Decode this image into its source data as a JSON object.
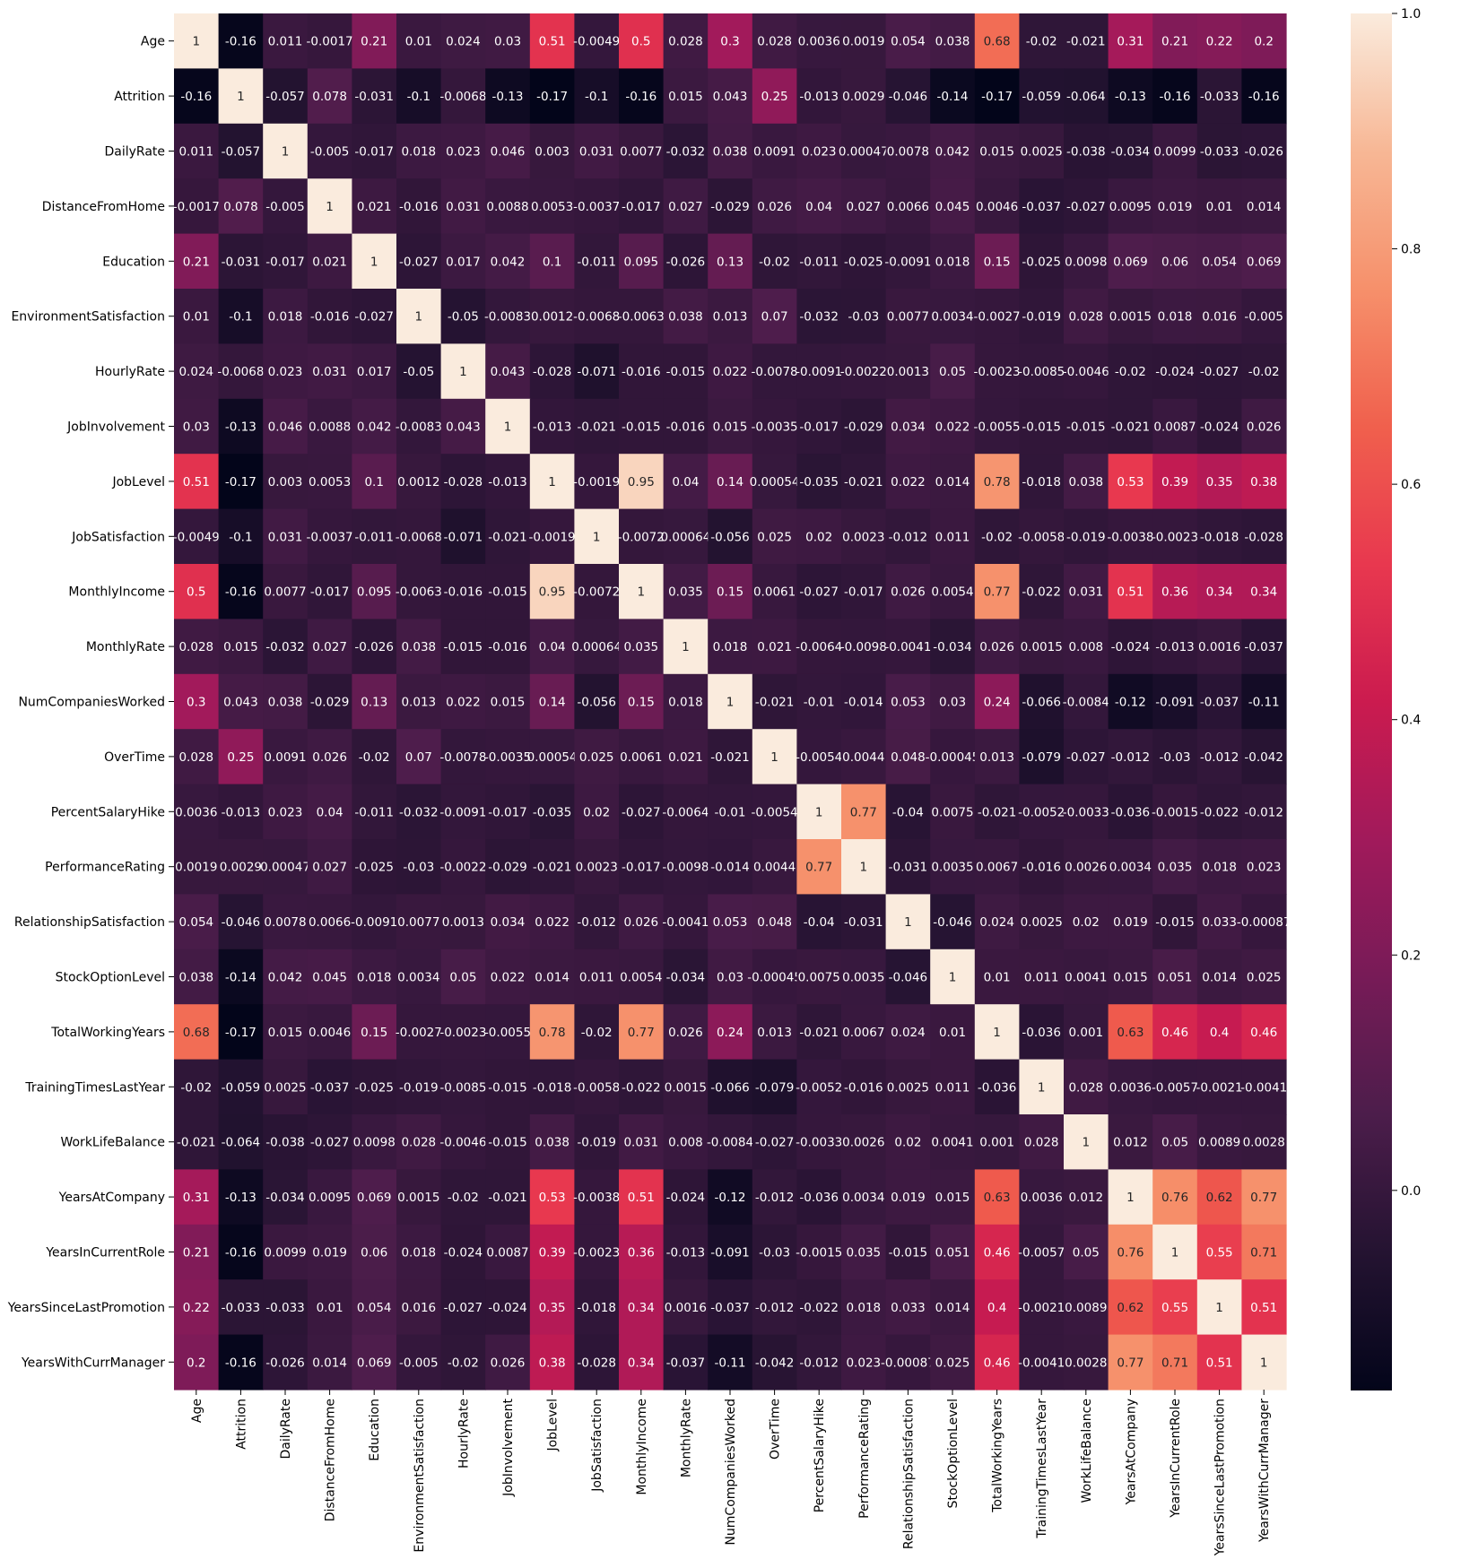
{
  "chart_data": {
    "type": "heatmap",
    "title": "",
    "xlabel": "",
    "ylabel": "",
    "variables": [
      "Age",
      "Attrition",
      "DailyRate",
      "DistanceFromHome",
      "Education",
      "EnvironmentSatisfaction",
      "HourlyRate",
      "JobInvolvement",
      "JobLevel",
      "JobSatisfaction",
      "MonthlyIncome",
      "MonthlyRate",
      "NumCompaniesWorked",
      "OverTime",
      "PercentSalaryHike",
      "PerformanceRating",
      "RelationshipSatisfaction",
      "StockOptionLevel",
      "TotalWorkingYears",
      "TrainingTimesLastYear",
      "WorkLifeBalance",
      "YearsAtCompany",
      "YearsInCurrentRole",
      "YearsSinceLastPromotion",
      "YearsWithCurrManager"
    ],
    "values": [
      [
        1,
        -0.16,
        0.011,
        -0.0017,
        0.21,
        0.01,
        0.024,
        0.03,
        0.51,
        -0.0049,
        0.5,
        0.028,
        0.3,
        0.028,
        0.0036,
        0.0019,
        0.054,
        0.038,
        0.68,
        -0.02,
        -0.021,
        0.31,
        0.21,
        0.22,
        0.2
      ],
      [
        -0.16,
        1,
        -0.057,
        0.078,
        -0.031,
        -0.1,
        -0.0068,
        -0.13,
        -0.17,
        -0.1,
        -0.16,
        0.015,
        0.043,
        0.25,
        -0.013,
        0.0029,
        -0.046,
        -0.14,
        -0.17,
        -0.059,
        -0.064,
        -0.13,
        -0.16,
        -0.033,
        -0.16
      ],
      [
        0.011,
        -0.057,
        1,
        -0.005,
        -0.017,
        0.018,
        0.023,
        0.046,
        0.003,
        0.031,
        0.0077,
        -0.032,
        0.038,
        0.0091,
        0.023,
        0.00047,
        0.0078,
        0.042,
        0.015,
        0.0025,
        -0.038,
        -0.034,
        0.0099,
        -0.033,
        -0.026
      ],
      [
        -0.0017,
        0.078,
        -0.005,
        1,
        0.021,
        -0.016,
        0.031,
        0.0088,
        0.0053,
        -0.0037,
        -0.017,
        0.027,
        -0.029,
        0.026,
        0.04,
        0.027,
        0.0066,
        0.045,
        0.0046,
        -0.037,
        -0.027,
        0.0095,
        0.019,
        0.01,
        0.014
      ],
      [
        0.21,
        -0.031,
        -0.017,
        0.021,
        1,
        -0.027,
        0.017,
        0.042,
        0.1,
        -0.011,
        0.095,
        -0.026,
        0.13,
        -0.02,
        -0.011,
        -0.025,
        -0.0091,
        0.018,
        0.15,
        -0.025,
        0.0098,
        0.069,
        0.06,
        0.054,
        0.069
      ],
      [
        0.01,
        -0.1,
        0.018,
        -0.016,
        -0.027,
        1,
        -0.05,
        -0.0083,
        0.0012,
        -0.0068,
        -0.0063,
        0.038,
        0.013,
        0.07,
        -0.032,
        -0.03,
        0.0077,
        0.0034,
        -0.0027,
        -0.019,
        0.028,
        0.0015,
        0.018,
        0.016,
        -0.005
      ],
      [
        0.024,
        -0.0068,
        0.023,
        0.031,
        0.017,
        -0.05,
        1,
        0.043,
        -0.028,
        -0.071,
        -0.016,
        -0.015,
        0.022,
        -0.0078,
        -0.0091,
        -0.0022,
        0.0013,
        0.05,
        -0.0023,
        -0.0085,
        -0.0046,
        -0.02,
        -0.024,
        -0.027,
        -0.02
      ],
      [
        0.03,
        -0.13,
        0.046,
        0.0088,
        0.042,
        -0.0083,
        0.043,
        1,
        -0.013,
        -0.021,
        -0.015,
        -0.016,
        0.015,
        -0.0035,
        -0.017,
        -0.029,
        0.034,
        0.022,
        -0.0055,
        -0.015,
        -0.015,
        -0.021,
        0.0087,
        -0.024,
        0.026
      ],
      [
        0.51,
        -0.17,
        0.003,
        0.0053,
        0.1,
        0.0012,
        -0.028,
        -0.013,
        1,
        -0.0019,
        0.95,
        0.04,
        0.14,
        0.00054,
        -0.035,
        -0.021,
        0.022,
        0.014,
        0.78,
        -0.018,
        0.038,
        0.53,
        0.39,
        0.35,
        0.38
      ],
      [
        -0.0049,
        -0.1,
        0.031,
        -0.0037,
        -0.011,
        -0.0068,
        -0.071,
        -0.021,
        -0.0019,
        1,
        -0.0072,
        0.00064,
        -0.056,
        0.025,
        0.02,
        0.0023,
        -0.012,
        0.011,
        -0.02,
        -0.0058,
        -0.019,
        -0.0038,
        -0.0023,
        -0.018,
        -0.028
      ],
      [
        0.5,
        -0.16,
        0.0077,
        -0.017,
        0.095,
        -0.0063,
        -0.016,
        -0.015,
        0.95,
        -0.0072,
        1,
        0.035,
        0.15,
        0.0061,
        -0.027,
        -0.017,
        0.026,
        0.0054,
        0.77,
        -0.022,
        0.031,
        0.51,
        0.36,
        0.34,
        0.34
      ],
      [
        0.028,
        0.015,
        -0.032,
        0.027,
        -0.026,
        0.038,
        -0.015,
        -0.016,
        0.04,
        0.00064,
        0.035,
        1,
        0.018,
        0.021,
        -0.0064,
        -0.0098,
        -0.0041,
        -0.034,
        0.026,
        0.0015,
        0.008,
        -0.024,
        -0.013,
        0.0016,
        -0.037
      ],
      [
        0.3,
        0.043,
        0.038,
        -0.029,
        0.13,
        0.013,
        0.022,
        0.015,
        0.14,
        -0.056,
        0.15,
        0.018,
        1,
        -0.021,
        -0.01,
        -0.014,
        0.053,
        0.03,
        0.24,
        -0.066,
        -0.0084,
        -0.12,
        -0.091,
        -0.037,
        -0.11
      ],
      [
        0.028,
        0.25,
        0.0091,
        0.026,
        -0.02,
        0.07,
        -0.0078,
        -0.0035,
        0.00054,
        0.025,
        0.0061,
        0.021,
        -0.021,
        1,
        -0.0054,
        0.0044,
        0.048,
        -0.00045,
        0.013,
        -0.079,
        -0.027,
        -0.012,
        -0.03,
        -0.012,
        -0.042
      ],
      [
        0.0036,
        -0.013,
        0.023,
        0.04,
        -0.011,
        -0.032,
        -0.0091,
        -0.017,
        -0.035,
        0.02,
        -0.027,
        -0.0064,
        -0.01,
        -0.0054,
        1,
        0.77,
        -0.04,
        0.0075,
        -0.021,
        -0.0052,
        -0.0033,
        -0.036,
        -0.0015,
        -0.022,
        -0.012
      ],
      [
        0.0019,
        0.0029,
        0.00047,
        0.027,
        -0.025,
        -0.03,
        -0.0022,
        -0.029,
        -0.021,
        0.0023,
        -0.017,
        -0.0098,
        -0.014,
        0.0044,
        0.77,
        1,
        -0.031,
        0.0035,
        0.0067,
        -0.016,
        0.0026,
        0.0034,
        0.035,
        0.018,
        0.023
      ],
      [
        0.054,
        -0.046,
        0.0078,
        0.0066,
        -0.0091,
        0.0077,
        0.0013,
        0.034,
        0.022,
        -0.012,
        0.026,
        -0.0041,
        0.053,
        0.048,
        -0.04,
        -0.031,
        1,
        -0.046,
        0.024,
        0.0025,
        0.02,
        0.019,
        -0.015,
        0.033,
        -0.00087
      ],
      [
        0.038,
        -0.14,
        0.042,
        0.045,
        0.018,
        0.0034,
        0.05,
        0.022,
        0.014,
        0.011,
        0.0054,
        -0.034,
        0.03,
        -0.00045,
        0.0075,
        0.0035,
        -0.046,
        1,
        0.01,
        0.011,
        0.0041,
        0.015,
        0.051,
        0.014,
        0.025
      ],
      [
        0.68,
        -0.17,
        0.015,
        0.0046,
        0.15,
        -0.0027,
        -0.0023,
        -0.0055,
        0.78,
        -0.02,
        0.77,
        0.026,
        0.24,
        0.013,
        -0.021,
        0.0067,
        0.024,
        0.01,
        1,
        -0.036,
        0.001,
        0.63,
        0.46,
        0.4,
        0.46
      ],
      [
        -0.02,
        -0.059,
        0.0025,
        -0.037,
        -0.025,
        -0.019,
        -0.0085,
        -0.015,
        -0.018,
        -0.0058,
        -0.022,
        0.0015,
        -0.066,
        -0.079,
        -0.0052,
        -0.016,
        0.0025,
        0.011,
        -0.036,
        1,
        0.028,
        0.0036,
        -0.0057,
        -0.0021,
        -0.0041
      ],
      [
        -0.021,
        -0.064,
        -0.038,
        -0.027,
        0.0098,
        0.028,
        -0.0046,
        -0.015,
        0.038,
        -0.019,
        0.031,
        0.008,
        -0.0084,
        -0.027,
        -0.0033,
        0.0026,
        0.02,
        0.0041,
        0.001,
        0.028,
        1,
        0.012,
        0.05,
        0.0089,
        0.0028
      ],
      [
        0.31,
        -0.13,
        -0.034,
        0.0095,
        0.069,
        0.0015,
        -0.02,
        -0.021,
        0.53,
        -0.0038,
        0.51,
        -0.024,
        -0.12,
        -0.012,
        -0.036,
        0.0034,
        0.019,
        0.015,
        0.63,
        0.0036,
        0.012,
        1,
        0.76,
        0.62,
        0.77
      ],
      [
        0.21,
        -0.16,
        0.0099,
        0.019,
        0.06,
        0.018,
        -0.024,
        0.0087,
        0.39,
        -0.0023,
        0.36,
        -0.013,
        -0.091,
        -0.03,
        -0.0015,
        0.035,
        -0.015,
        0.051,
        0.46,
        -0.0057,
        0.05,
        0.76,
        1,
        0.55,
        0.71
      ],
      [
        0.22,
        -0.033,
        -0.033,
        0.01,
        0.054,
        0.016,
        -0.027,
        -0.024,
        0.35,
        -0.018,
        0.34,
        0.0016,
        -0.037,
        -0.012,
        -0.022,
        0.018,
        0.033,
        0.014,
        0.4,
        -0.0021,
        0.0089,
        0.62,
        0.55,
        1,
        0.51
      ],
      [
        0.2,
        -0.16,
        -0.026,
        0.014,
        0.069,
        -0.005,
        -0.02,
        0.026,
        0.38,
        -0.028,
        0.34,
        -0.037,
        -0.11,
        -0.042,
        -0.012,
        0.023,
        -0.00087,
        0.025,
        0.46,
        -0.0041,
        0.0028,
        0.77,
        0.71,
        0.51,
        1
      ]
    ],
    "colorbar": {
      "vmin": -0.17,
      "vmax": 1.0,
      "ticks": [
        "0.0",
        "0.2",
        "0.4",
        "0.6",
        "0.8",
        "1.0"
      ],
      "colormap": "rocket",
      "colorscale": [
        "#03051a",
        "#241331",
        "#4c1d4b",
        "#771b57",
        "#a11a5b",
        "#cb1b4f",
        "#e8384f",
        "#f0604d",
        "#f6906b",
        "#f7b795",
        "#faebdd"
      ]
    },
    "annotations": "cell values printed",
    "legend": "colorbar-right"
  }
}
